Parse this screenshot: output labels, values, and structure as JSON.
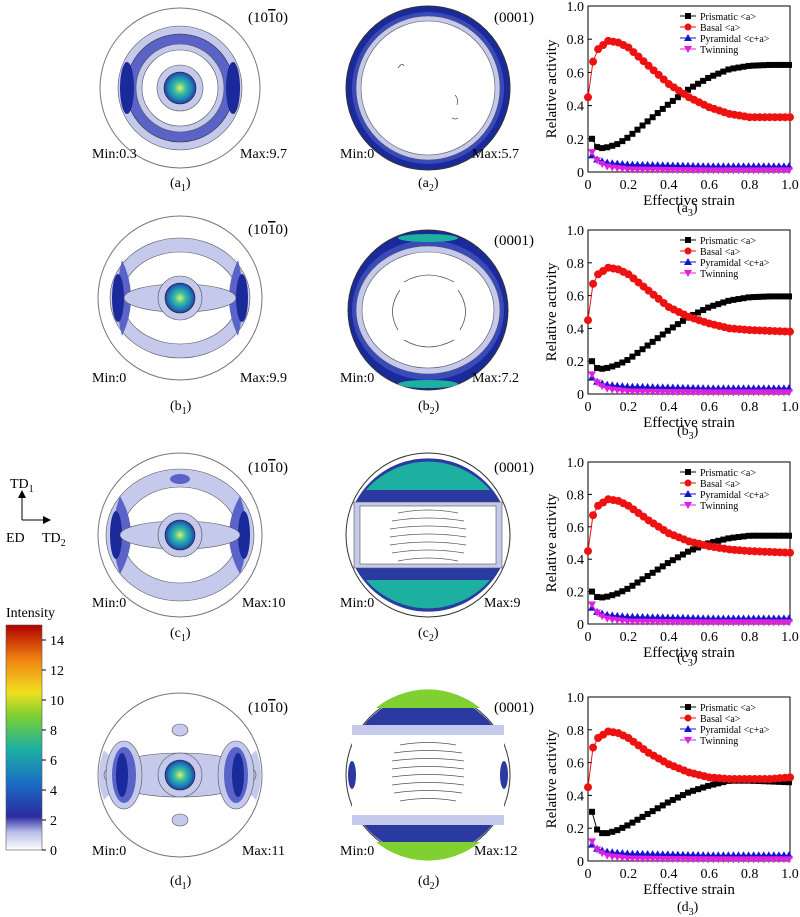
{
  "rows": [
    {
      "pf1": {
        "title": "(10̅1̅0)",
        "title_parts": [
          "(10",
          "1",
          "0)"
        ],
        "min": "Min:0.3",
        "max": "Max:9.7",
        "caption": [
          "(a",
          "1",
          ")"
        ]
      },
      "pf2": {
        "title": "(0001)",
        "min": "Min:0",
        "max": "Max:5.7",
        "caption": [
          "(a",
          "2",
          ")"
        ]
      },
      "chart_caption": [
        "(a",
        "3",
        ")"
      ]
    },
    {
      "pf1": {
        "title": "(10̅1̅0)",
        "title_parts": [
          "(10",
          "1",
          "0)"
        ],
        "min": "Min:0",
        "max": "Max:9.9",
        "caption": [
          "(b",
          "1",
          ")"
        ]
      },
      "pf2": {
        "title": "(0001)",
        "min": "Min:0",
        "max": "Max:7.2",
        "caption": [
          "(b",
          "2",
          ")"
        ]
      },
      "chart_caption": [
        "(b",
        "3",
        ")"
      ]
    },
    {
      "pf1": {
        "title": "(10̅1̅0)",
        "title_parts": [
          "(10",
          "1",
          "0)"
        ],
        "min": "Min:0",
        "max": "Max:10",
        "caption": [
          "(c",
          "1",
          ")"
        ]
      },
      "pf2": {
        "title": "(0001)",
        "min": "Min:0",
        "max": "Max:9",
        "caption": [
          "(c",
          "2",
          ")"
        ]
      },
      "chart_caption": [
        "(c",
        "3",
        ")"
      ]
    },
    {
      "pf1": {
        "title": "(10̅1̅0)",
        "title_parts": [
          "(10",
          "1",
          "0)"
        ],
        "min": "Min:0",
        "max": "Max:11",
        "caption": [
          "(d",
          "1",
          ")"
        ]
      },
      "pf2": {
        "title": "(0001)",
        "min": "Min:0",
        "max": "Max:12",
        "caption": [
          "(d",
          "2",
          ")"
        ]
      },
      "chart_caption": [
        "(d",
        "3",
        ")"
      ]
    }
  ],
  "axes_labels": {
    "td1": [
      "TD",
      "1"
    ],
    "ed": "ED",
    "td2": [
      "TD",
      "2"
    ]
  },
  "colorbar": {
    "title": "Intensity",
    "ticks": [
      "0",
      "2",
      "4",
      "6",
      "8",
      "10",
      "12",
      "14"
    ],
    "colors": [
      "#ffffff",
      "#2b2b9c",
      "#1a6fc4",
      "#1db0a0",
      "#7fd030",
      "#f0e020",
      "#f08010",
      "#c01010"
    ]
  },
  "colors": {
    "prismatic": "#000000",
    "basal": "#ee1111",
    "pyramidal": "#1515d0",
    "twinning": "#e020e0"
  },
  "chart_data": [
    {
      "type": "line",
      "xlabel": "Effective strain",
      "ylabel": "Relative activity",
      "xlim": [
        0,
        1.0
      ],
      "ylim": [
        0,
        1.0
      ],
      "xticks": [
        "0",
        "0.2",
        "0.4",
        "0.6",
        "0.8",
        "1.0"
      ],
      "yticks": [
        "0",
        "0.2",
        "0.4",
        "0.6",
        "0.8",
        "1.0"
      ],
      "legend_position": "top-right",
      "series": [
        {
          "name": "Prismatic <a>",
          "marker": "square",
          "x": [
            0.02,
            0.05,
            0.1,
            0.15,
            0.2,
            0.3,
            0.4,
            0.5,
            0.6,
            0.7,
            0.8,
            0.9,
            1.0
          ],
          "values": [
            0.2,
            0.14,
            0.15,
            0.17,
            0.21,
            0.31,
            0.41,
            0.5,
            0.57,
            0.62,
            0.64,
            0.645,
            0.645
          ]
        },
        {
          "name": "Basal <a>",
          "marker": "circle",
          "x": [
            0.0,
            0.02,
            0.05,
            0.1,
            0.15,
            0.2,
            0.3,
            0.4,
            0.5,
            0.6,
            0.7,
            0.8,
            0.9,
            1.0
          ],
          "values": [
            0.45,
            0.65,
            0.74,
            0.79,
            0.78,
            0.75,
            0.64,
            0.53,
            0.45,
            0.39,
            0.35,
            0.33,
            0.33,
            0.33
          ]
        },
        {
          "name": "Pyramidal <c+a>",
          "marker": "triangle-up",
          "x": [
            0.02,
            0.05,
            0.1,
            0.2,
            0.4,
            0.6,
            0.8,
            1.0
          ],
          "values": [
            0.1,
            0.07,
            0.055,
            0.045,
            0.04,
            0.035,
            0.035,
            0.035
          ]
        },
        {
          "name": "Twinning",
          "marker": "triangle-down",
          "x": [
            0.02,
            0.05,
            0.1,
            0.2,
            0.4,
            0.6,
            0.8,
            1.0
          ],
          "values": [
            0.12,
            0.06,
            0.03,
            0.015,
            0.012,
            0.01,
            0.01,
            0.01
          ]
        }
      ]
    },
    {
      "type": "line",
      "xlabel": "Effective strain",
      "ylabel": "Relative activity",
      "xlim": [
        0,
        1.0
      ],
      "ylim": [
        0,
        1.0
      ],
      "xticks": [
        "0",
        "0.2",
        "0.4",
        "0.6",
        "0.8",
        "1.0"
      ],
      "yticks": [
        "0",
        "0.2",
        "0.4",
        "0.6",
        "0.8",
        "1.0"
      ],
      "legend_position": "top-right",
      "series": [
        {
          "name": "Prismatic <a>",
          "marker": "square",
          "x": [
            0.02,
            0.05,
            0.1,
            0.15,
            0.2,
            0.3,
            0.4,
            0.5,
            0.6,
            0.7,
            0.8,
            0.9,
            1.0
          ],
          "values": [
            0.2,
            0.15,
            0.16,
            0.18,
            0.21,
            0.3,
            0.39,
            0.47,
            0.53,
            0.57,
            0.59,
            0.595,
            0.595
          ]
        },
        {
          "name": "Basal <a>",
          "marker": "circle",
          "x": [
            0.0,
            0.02,
            0.05,
            0.1,
            0.15,
            0.2,
            0.3,
            0.4,
            0.5,
            0.6,
            0.7,
            0.8,
            0.9,
            1.0
          ],
          "values": [
            0.45,
            0.66,
            0.73,
            0.77,
            0.76,
            0.73,
            0.63,
            0.53,
            0.47,
            0.43,
            0.4,
            0.39,
            0.385,
            0.38
          ]
        },
        {
          "name": "Pyramidal <c+a>",
          "marker": "triangle-up",
          "x": [
            0.02,
            0.05,
            0.1,
            0.2,
            0.4,
            0.6,
            0.8,
            1.0
          ],
          "values": [
            0.1,
            0.07,
            0.055,
            0.045,
            0.04,
            0.035,
            0.035,
            0.035
          ]
        },
        {
          "name": "Twinning",
          "marker": "triangle-down",
          "x": [
            0.02,
            0.05,
            0.1,
            0.2,
            0.4,
            0.6,
            0.8,
            1.0
          ],
          "values": [
            0.12,
            0.06,
            0.03,
            0.015,
            0.012,
            0.01,
            0.01,
            0.01
          ]
        }
      ]
    },
    {
      "type": "line",
      "xlabel": "Effective strain",
      "ylabel": "Relative activity",
      "xlim": [
        0,
        1.0
      ],
      "ylim": [
        0,
        1.0
      ],
      "xticks": [
        "0",
        "0.2",
        "0.4",
        "0.6",
        "0.8",
        "1.0"
      ],
      "yticks": [
        "0",
        "0.2",
        "0.4",
        "0.6",
        "0.8",
        "1.0"
      ],
      "legend_position": "top-right",
      "series": [
        {
          "name": "Prismatic <a>",
          "marker": "square",
          "x": [
            0.02,
            0.05,
            0.1,
            0.15,
            0.2,
            0.3,
            0.4,
            0.5,
            0.6,
            0.7,
            0.8,
            0.9,
            1.0
          ],
          "values": [
            0.2,
            0.16,
            0.17,
            0.19,
            0.22,
            0.3,
            0.38,
            0.45,
            0.5,
            0.53,
            0.545,
            0.545,
            0.545
          ]
        },
        {
          "name": "Basal <a>",
          "marker": "circle",
          "x": [
            0.0,
            0.02,
            0.05,
            0.1,
            0.15,
            0.2,
            0.3,
            0.4,
            0.5,
            0.6,
            0.7,
            0.8,
            0.9,
            1.0
          ],
          "values": [
            0.45,
            0.66,
            0.73,
            0.77,
            0.76,
            0.73,
            0.64,
            0.56,
            0.51,
            0.48,
            0.46,
            0.45,
            0.445,
            0.44
          ]
        },
        {
          "name": "Pyramidal <c+a>",
          "marker": "triangle-up",
          "x": [
            0.02,
            0.05,
            0.1,
            0.2,
            0.4,
            0.6,
            0.8,
            1.0
          ],
          "values": [
            0.1,
            0.07,
            0.055,
            0.045,
            0.04,
            0.035,
            0.035,
            0.035
          ]
        },
        {
          "name": "Twinning",
          "marker": "triangle-down",
          "x": [
            0.02,
            0.05,
            0.1,
            0.2,
            0.4,
            0.6,
            0.8,
            1.0
          ],
          "values": [
            0.12,
            0.06,
            0.03,
            0.015,
            0.012,
            0.01,
            0.01,
            0.01
          ]
        }
      ]
    },
    {
      "type": "line",
      "xlabel": "Effective strain",
      "ylabel": "Relative activity",
      "xlim": [
        0,
        1.0
      ],
      "ylim": [
        0,
        1.0
      ],
      "xticks": [
        "0",
        "0.2",
        "0.4",
        "0.6",
        "0.8",
        "1.0"
      ],
      "yticks": [
        "0",
        "0.2",
        "0.4",
        "0.6",
        "0.8",
        "1.0"
      ],
      "legend_position": "top-right",
      "series": [
        {
          "name": "Prismatic <a>",
          "marker": "square",
          "x": [
            0.02,
            0.05,
            0.1,
            0.15,
            0.2,
            0.3,
            0.4,
            0.5,
            0.6,
            0.7,
            0.8,
            0.9,
            1.0
          ],
          "values": [
            0.3,
            0.17,
            0.17,
            0.19,
            0.22,
            0.29,
            0.36,
            0.42,
            0.46,
            0.49,
            0.49,
            0.485,
            0.48
          ]
        },
        {
          "name": "Basal <a>",
          "marker": "circle",
          "x": [
            0.0,
            0.02,
            0.05,
            0.1,
            0.15,
            0.2,
            0.3,
            0.4,
            0.5,
            0.6,
            0.7,
            0.8,
            0.9,
            1.0
          ],
          "values": [
            0.45,
            0.68,
            0.75,
            0.79,
            0.78,
            0.75,
            0.66,
            0.59,
            0.54,
            0.51,
            0.5,
            0.5,
            0.5,
            0.51
          ]
        },
        {
          "name": "Pyramidal <c+a>",
          "marker": "triangle-up",
          "x": [
            0.02,
            0.05,
            0.1,
            0.2,
            0.4,
            0.6,
            0.8,
            1.0
          ],
          "values": [
            0.1,
            0.07,
            0.055,
            0.045,
            0.04,
            0.035,
            0.035,
            0.035
          ]
        },
        {
          "name": "Twinning",
          "marker": "triangle-down",
          "x": [
            0.02,
            0.05,
            0.1,
            0.2,
            0.4,
            0.6,
            0.8,
            1.0
          ],
          "values": [
            0.12,
            0.06,
            0.03,
            0.015,
            0.012,
            0.01,
            0.01,
            0.01
          ]
        }
      ]
    }
  ]
}
